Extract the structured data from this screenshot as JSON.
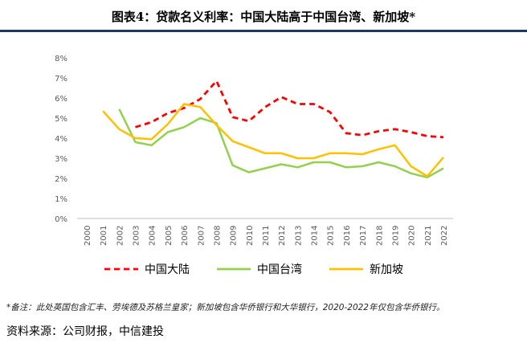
{
  "page": {
    "title": "图表4：贷款名义利率：中国大陆高于中国台湾、新加坡*",
    "note": "*备注：此处英国包含汇丰、劳埃德及苏格兰皇家；新加坡包含华侨银行和大华银行，2020-2022年仅包含华侨银行。",
    "source": "资料来源：公司财报，中信建投"
  },
  "colors": {
    "mainland": "#ff0000",
    "taiwan": "#92d050",
    "singapore": "#ffc000",
    "gridline": "#d9d9d9",
    "title_rule": "#1f3864"
  },
  "chart_data": {
    "type": "line",
    "title": "贷款名义利率：中国大陆高于中国台湾、新加坡*",
    "xlabel": "",
    "ylabel": "",
    "ylim": [
      0,
      8
    ],
    "yticks": [
      "0%",
      "1%",
      "2%",
      "3%",
      "4%",
      "5%",
      "6%",
      "7%",
      "8%"
    ],
    "grid": false,
    "legend_position": "bottom",
    "categories": [
      "2000",
      "2001",
      "2002",
      "2003",
      "2004",
      "2005",
      "2006",
      "2007",
      "2008",
      "2009",
      "2010",
      "2011",
      "2012",
      "2013",
      "2014",
      "2015",
      "2016",
      "2017",
      "2018",
      "2019",
      "2020",
      "2021",
      "2022"
    ],
    "series": [
      {
        "name": "中国大陆",
        "style": "dashed",
        "color": "#ff0000",
        "values": [
          null,
          null,
          null,
          4.55,
          4.8,
          5.25,
          5.5,
          5.95,
          6.85,
          5.05,
          4.85,
          5.55,
          6.05,
          5.7,
          5.7,
          5.3,
          4.25,
          4.15,
          4.35,
          4.45,
          4.3,
          4.1,
          4.05
        ]
      },
      {
        "name": "中国台湾",
        "style": "solid",
        "color": "#92d050",
        "values": [
          null,
          null,
          5.45,
          3.8,
          3.65,
          4.3,
          4.55,
          5.0,
          4.75,
          2.65,
          2.3,
          2.5,
          2.7,
          2.55,
          2.8,
          2.8,
          2.55,
          2.6,
          2.8,
          2.6,
          2.25,
          2.05,
          2.5
        ]
      },
      {
        "name": "新加坡",
        "style": "solid",
        "color": "#ffc000",
        "values": [
          null,
          5.35,
          4.45,
          4.0,
          3.95,
          4.7,
          5.7,
          5.55,
          4.65,
          3.85,
          3.55,
          3.25,
          3.25,
          3.0,
          3.0,
          3.25,
          3.25,
          3.2,
          3.45,
          3.65,
          2.6,
          2.1,
          3.05
        ]
      }
    ]
  }
}
